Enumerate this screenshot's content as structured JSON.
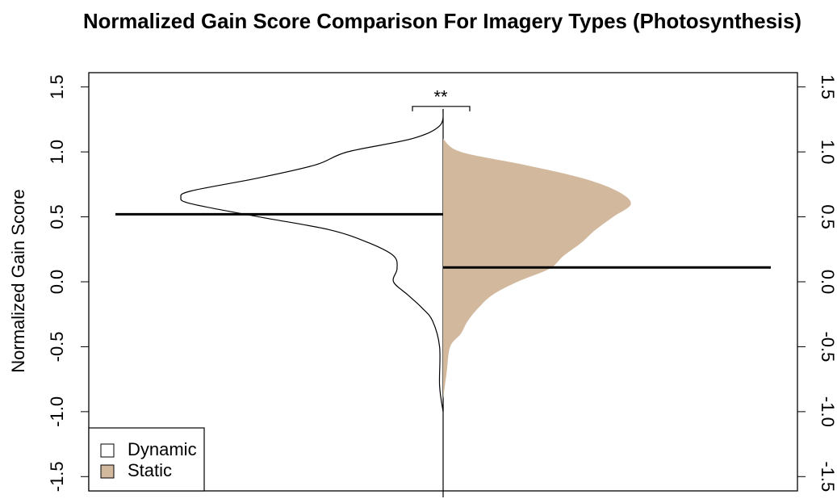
{
  "chart_data": {
    "type": "beanplot",
    "title": "Normalized Gain Score Comparison For Imagery Types (Photosynthesis)",
    "ylabel": "Normalized Gain Score",
    "annotation": "**",
    "ylim": [
      -1.61,
      1.61
    ],
    "yticks": [
      1.5,
      {
        "value": 1,
        "label": "1.0"
      },
      0.5,
      {
        "value": 0,
        "label": "0.0"
      },
      -0.5,
      {
        "value": -1,
        "label": "-1.0"
      },
      -1.5
    ],
    "y2lim": [
      -1.61,
      1.61
    ],
    "y2ticks": [
      1.5,
      {
        "value": 1,
        "label": "1.0"
      },
      0.5,
      {
        "value": 0,
        "label": "0.0"
      },
      -0.5,
      {
        "value": -1,
        "label": "-1.0"
      },
      -1.5
    ],
    "xlim": [
      -1,
      1
    ],
    "legend": "bottom-left",
    "series": [
      {
        "name": "Dynamic",
        "color": "#ffffff",
        "side": "left",
        "mean": 0.52,
        "y": [
          1.33,
          1.2,
          1.1,
          1.0,
          0.9,
          0.8,
          0.7,
          0.65,
          0.6,
          0.5,
          0.4,
          0.3,
          0.2,
          0.1,
          0,
          -0.1,
          -0.2,
          -0.3,
          -0.5,
          -0.8,
          -1.0
        ],
        "density": [
          0,
          0.01,
          0.09,
          0.27,
          0.36,
          0.52,
          0.71,
          0.74,
          0.71,
          0.52,
          0.32,
          0.21,
          0.14,
          0.13,
          0.14,
          0.1,
          0.06,
          0.03,
          0.01,
          0.01,
          0
        ]
      },
      {
        "name": "Static",
        "color": "#d2b99e",
        "side": "right",
        "mean": 0.11,
        "y": [
          1.1,
          1.0,
          0.9,
          0.8,
          0.7,
          0.6,
          0.5,
          0.4,
          0.3,
          0.2,
          0.1,
          0,
          -0.1,
          -0.2,
          -0.3,
          -0.4,
          -0.5,
          -0.7,
          -0.9
        ],
        "density": [
          0,
          0.05,
          0.23,
          0.39,
          0.49,
          0.53,
          0.48,
          0.43,
          0.39,
          0.34,
          0.3,
          0.21,
          0.14,
          0.1,
          0.07,
          0.05,
          0.02,
          0.01,
          0
        ]
      }
    ]
  }
}
